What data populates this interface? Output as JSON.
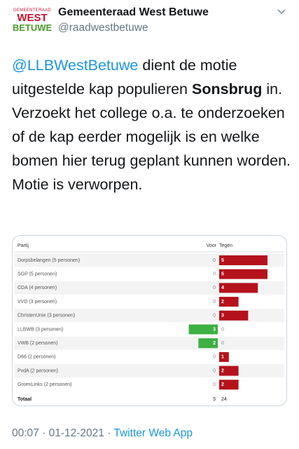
{
  "header": {
    "logo": {
      "line1": "GEMEENTERAAD",
      "line2": "WEST",
      "line3": "BETUWE"
    },
    "name": "Gemeenteraad West Betuwe",
    "handle": "@raadwestbetuwe"
  },
  "tweet": {
    "mention": "@LLBWestBetuwe",
    "text1": "dient de motie uitgestelde kap populieren",
    "bold": "Sonsbrug",
    "text2": "in. Verzoekt het college o.a. te onderzoeken of de kap eerder mogelijk is en welke bomen hier terug geplant kunnen worden. Motie is verworpen."
  },
  "table": {
    "headers": [
      "Partij",
      "Voor",
      "Tegen"
    ],
    "rows": [
      [
        "Dorpsbelangen (5 personen)",
        0,
        5
      ],
      [
        "SGP (5 personen)",
        0,
        5
      ],
      [
        "CDA (4 personen)",
        0,
        4
      ],
      [
        "VVD (3 personen)",
        0,
        2
      ],
      [
        "ChristenUnie (3 personen)",
        0,
        3
      ],
      [
        "LLBWB (3 personen)",
        3,
        0
      ],
      [
        "VWB (2 personen)",
        2,
        0
      ],
      [
        "D66 (2 personen)",
        0,
        1
      ],
      [
        "PvdA (2 personen)",
        0,
        2
      ],
      [
        "GroenLinks (2 personen)",
        0,
        2
      ]
    ],
    "total": [
      "Totaal",
      5,
      24
    ]
  },
  "meta": {
    "time": "00:07",
    "separator": "·",
    "date": "01-12-2021",
    "source": "Twitter Web App"
  }
}
